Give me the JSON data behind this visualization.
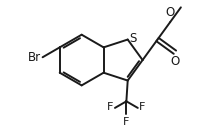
{
  "bg_color": "#ffffff",
  "line_color": "#1a1a1a",
  "line_width": 1.4,
  "font_size": 8.5,
  "xlim": [
    -0.2,
    2.2
  ],
  "ylim": [
    -1.05,
    0.85
  ]
}
